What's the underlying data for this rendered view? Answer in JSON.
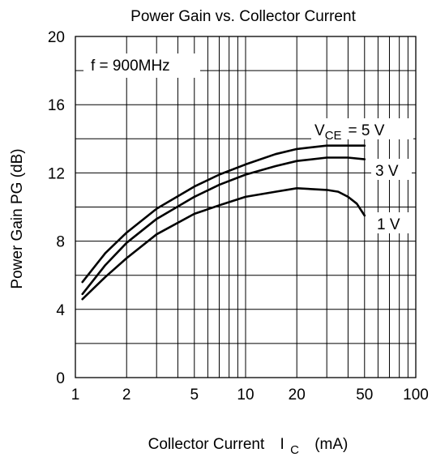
{
  "chart_data": {
    "type": "line",
    "title": "Power Gain vs. Collector Current",
    "xlabel": "Collector Current",
    "xlabel_symbol": "I",
    "xlabel_symbol_sub": "C",
    "xlabel_unit": "(mA)",
    "ylabel": "Power Gain   PG  (dB)",
    "x_scale": "log",
    "xlim": [
      1,
      100
    ],
    "ylim": [
      0,
      20
    ],
    "x_ticks": [
      1,
      2,
      5,
      10,
      20,
      50,
      100
    ],
    "x_tick_labels": [
      "1",
      "2",
      "5",
      "10",
      "20",
      "50",
      "100"
    ],
    "y_ticks": [
      0,
      4,
      8,
      12,
      16,
      20
    ],
    "y_tick_labels": [
      "0",
      "4",
      "8",
      "12",
      "16",
      "20"
    ],
    "grid": true,
    "annotation": "f = 900MHz",
    "series_label_prefix": "V",
    "series_label_prefix_sub": "CE",
    "series_label_eq": "=",
    "series": [
      {
        "name": "5 V",
        "x": [
          1.1,
          1.5,
          2,
          3,
          5,
          7,
          10,
          15,
          20,
          30,
          40,
          50
        ],
        "values": [
          5.6,
          7.3,
          8.5,
          9.9,
          11.2,
          11.9,
          12.5,
          13.1,
          13.4,
          13.6,
          13.6,
          13.6
        ]
      },
      {
        "name": "3 V",
        "x": [
          1.1,
          1.5,
          2,
          3,
          5,
          7,
          10,
          15,
          20,
          30,
          40,
          50
        ],
        "values": [
          4.9,
          6.6,
          7.9,
          9.3,
          10.6,
          11.3,
          11.9,
          12.4,
          12.7,
          12.9,
          12.9,
          12.8
        ]
      },
      {
        "name": "1 V",
        "x": [
          1.1,
          1.5,
          2,
          3,
          5,
          7,
          10,
          15,
          20,
          30,
          35,
          40,
          45,
          50
        ],
        "values": [
          4.6,
          5.9,
          7.0,
          8.4,
          9.6,
          10.1,
          10.6,
          10.9,
          11.1,
          11.0,
          10.9,
          10.6,
          10.2,
          9.5
        ]
      }
    ]
  }
}
